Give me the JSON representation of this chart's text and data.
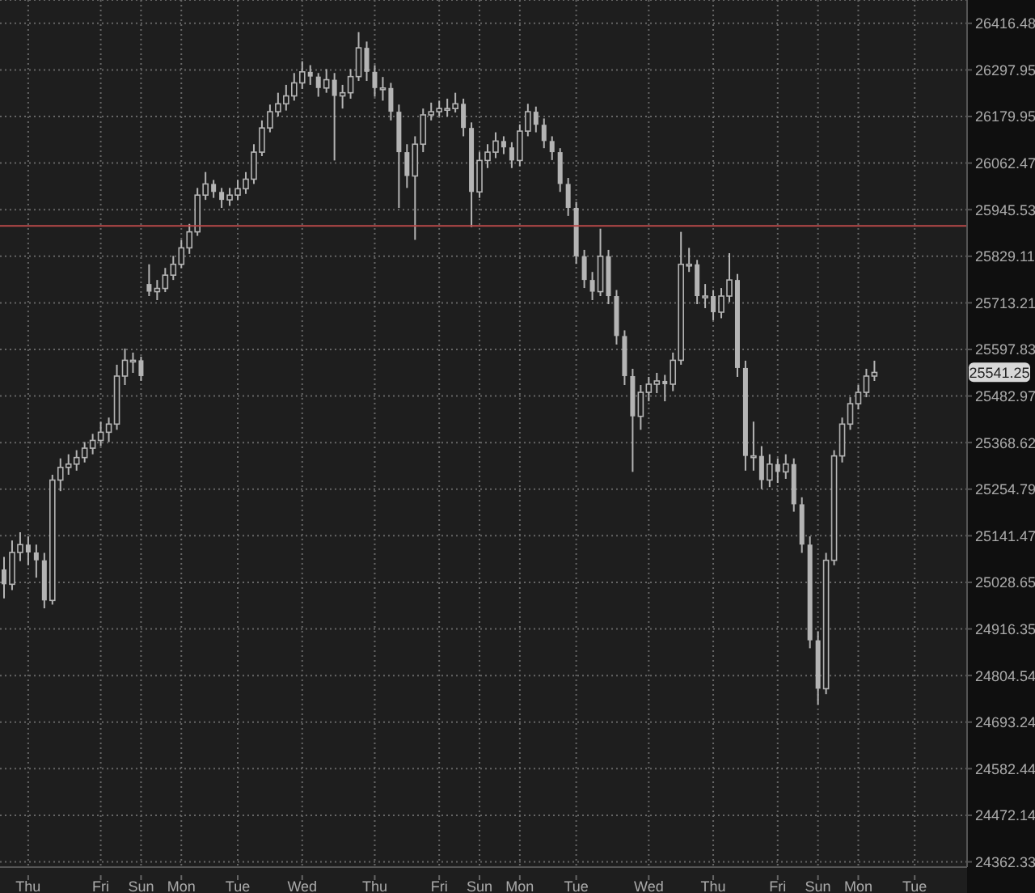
{
  "chart_data": {
    "type": "candlestick",
    "color": "#b4b4b4",
    "log": true,
    "grid": true,
    "ylim": [
      24350,
      26476
    ],
    "yticks": [
      26416.48,
      26297.95,
      26179.95,
      26062.47,
      25945.53,
      25829.11,
      25713.21,
      25597.83,
      25482.97,
      25368.62,
      25254.79,
      25141.47,
      25028.65,
      24916.35,
      24804.54,
      24693.24,
      24582.44,
      24472.14,
      24362.33
    ],
    "categories": [
      null,
      null,
      null,
      "Thu",
      null,
      null,
      null,
      null,
      null,
      null,
      null,
      null,
      "Fri",
      null,
      null,
      null,
      null,
      "Sun",
      null,
      null,
      null,
      null,
      "Mon",
      null,
      null,
      null,
      null,
      null,
      null,
      "Tue",
      null,
      null,
      null,
      null,
      null,
      null,
      null,
      "Wed",
      null,
      null,
      null,
      null,
      null,
      null,
      null,
      null,
      "Thu",
      null,
      null,
      null,
      null,
      null,
      null,
      null,
      "Fri",
      null,
      null,
      null,
      null,
      "Sun",
      null,
      null,
      null,
      null,
      "Mon",
      null,
      null,
      null,
      null,
      null,
      null,
      "Tue",
      null,
      null,
      null,
      null,
      null,
      null,
      null,
      null,
      "Wed",
      null,
      null,
      null,
      null,
      null,
      null,
      null,
      "Thu",
      null,
      null,
      null,
      null,
      null,
      null,
      null,
      "Fri",
      null,
      null,
      null,
      null,
      "Sun",
      null,
      null,
      null,
      null,
      "Mon",
      null,
      null,
      null,
      null,
      null,
      null,
      "Tue",
      null,
      null,
      null,
      null,
      null,
      null
    ],
    "ohlc": [
      [
        25060,
        25090,
        24990,
        25024
      ],
      [
        25024,
        25130,
        25010,
        25101
      ],
      [
        25101,
        25150,
        25080,
        25120
      ],
      [
        25120,
        25140,
        25070,
        25101
      ],
      [
        25101,
        25120,
        25040,
        25082
      ],
      [
        25082,
        25100,
        24966,
        24985
      ],
      [
        24985,
        25290,
        24975,
        25277
      ],
      [
        25277,
        25330,
        25250,
        25308
      ],
      [
        25308,
        25340,
        25290,
        25316
      ],
      [
        25316,
        25350,
        25300,
        25332
      ],
      [
        25332,
        25370,
        25320,
        25355
      ],
      [
        25355,
        25390,
        25340,
        25374
      ],
      [
        25374,
        25420,
        25360,
        25394
      ],
      [
        25394,
        25430,
        25370,
        25414
      ],
      [
        25414,
        25560,
        25400,
        25532
      ],
      [
        25532,
        25600,
        25510,
        25571
      ],
      [
        25571,
        25590,
        25540,
        25571
      ],
      [
        25571,
        25580,
        25520,
        25532
      ],
      [
        25760,
        25809,
        25730,
        25741
      ],
      [
        25741,
        25770,
        25720,
        25749
      ],
      [
        25749,
        25800,
        25740,
        25782
      ],
      [
        25782,
        25830,
        25770,
        25809
      ],
      [
        25809,
        25870,
        25800,
        25850
      ],
      [
        25850,
        25910,
        25835,
        25890
      ],
      [
        25890,
        26000,
        25880,
        25982
      ],
      [
        25982,
        26040,
        25970,
        26010
      ],
      [
        26010,
        26020,
        25975,
        25990
      ],
      [
        25990,
        26000,
        25950,
        25970
      ],
      [
        25970,
        26000,
        25955,
        25982
      ],
      [
        25982,
        26020,
        25970,
        25998
      ],
      [
        25998,
        26040,
        25985,
        26022
      ],
      [
        26022,
        26110,
        26010,
        26090
      ],
      [
        26090,
        26170,
        26080,
        26151
      ],
      [
        26151,
        26210,
        26140,
        26192
      ],
      [
        26192,
        26240,
        26180,
        26212
      ],
      [
        26212,
        26260,
        26195,
        26232
      ],
      [
        26232,
        26290,
        26220,
        26265
      ],
      [
        26265,
        26320,
        26250,
        26293
      ],
      [
        26293,
        26310,
        26260,
        26281
      ],
      [
        26281,
        26290,
        26230,
        26252
      ],
      [
        26252,
        26300,
        26240,
        26273
      ],
      [
        26273,
        26290,
        26069,
        26232
      ],
      [
        26232,
        26260,
        26200,
        26240
      ],
      [
        26240,
        26300,
        26225,
        26281
      ],
      [
        26281,
        26394,
        26270,
        26354
      ],
      [
        26354,
        26370,
        26270,
        26293
      ],
      [
        26293,
        26310,
        26230,
        26252
      ],
      [
        26252,
        26280,
        26220,
        26252
      ],
      [
        26252,
        26265,
        26170,
        26192
      ],
      [
        26192,
        26210,
        25950,
        26090
      ],
      [
        26090,
        26110,
        26000,
        26030
      ],
      [
        26030,
        26130,
        25870,
        26110
      ],
      [
        26110,
        26200,
        26090,
        26184
      ],
      [
        26184,
        26215,
        26170,
        26192
      ],
      [
        26192,
        26220,
        26180,
        26200
      ],
      [
        26200,
        26225,
        26180,
        26200
      ],
      [
        26200,
        26240,
        26190,
        26212
      ],
      [
        26212,
        26225,
        26130,
        26151
      ],
      [
        26151,
        26165,
        25902,
        25990
      ],
      [
        25990,
        26090,
        25975,
        26069
      ],
      [
        26069,
        26110,
        26050,
        26090
      ],
      [
        26090,
        26140,
        26075,
        26118
      ],
      [
        26118,
        26130,
        26085,
        26102
      ],
      [
        26102,
        26115,
        26050,
        26069
      ],
      [
        26069,
        26160,
        26055,
        26143
      ],
      [
        26143,
        26212,
        26130,
        26192
      ],
      [
        26192,
        26205,
        26140,
        26159
      ],
      [
        26159,
        26175,
        26100,
        26118
      ],
      [
        26118,
        26130,
        26070,
        26090
      ],
      [
        26090,
        26100,
        25990,
        26010
      ],
      [
        26010,
        26025,
        25930,
        25950
      ],
      [
        25950,
        25965,
        25810,
        25829
      ],
      [
        25829,
        25845,
        25750,
        25770
      ],
      [
        25770,
        25790,
        25720,
        25741
      ],
      [
        25741,
        25898,
        25730,
        25829
      ],
      [
        25829,
        25845,
        25710,
        25730
      ],
      [
        25730,
        25745,
        25610,
        25631
      ],
      [
        25631,
        25645,
        25510,
        25532
      ],
      [
        25532,
        25550,
        25297,
        25433
      ],
      [
        25433,
        25510,
        25400,
        25492
      ],
      [
        25492,
        25530,
        25470,
        25512
      ],
      [
        25512,
        25540,
        25490,
        25520
      ],
      [
        25520,
        25535,
        25470,
        25512
      ],
      [
        25512,
        25590,
        25495,
        25571
      ],
      [
        25571,
        25890,
        25560,
        25809
      ],
      [
        25809,
        25850,
        25790,
        25809
      ],
      [
        25809,
        25820,
        25710,
        25730
      ],
      [
        25730,
        25760,
        25700,
        25730
      ],
      [
        25730,
        25745,
        25670,
        25690
      ],
      [
        25690,
        25750,
        25675,
        25730
      ],
      [
        25730,
        25837,
        25715,
        25770
      ],
      [
        25770,
        25785,
        25530,
        25552
      ],
      [
        25552,
        25570,
        25300,
        25336
      ],
      [
        25336,
        25420,
        25300,
        25336
      ],
      [
        25336,
        25360,
        25255,
        25277
      ],
      [
        25277,
        25340,
        25260,
        25316
      ],
      [
        25316,
        25330,
        25270,
        25297
      ],
      [
        25297,
        25340,
        25280,
        25316
      ],
      [
        25316,
        25330,
        25200,
        25218
      ],
      [
        25218,
        25235,
        25100,
        25120
      ],
      [
        25120,
        25140,
        24870,
        24889
      ],
      [
        24889,
        24910,
        24735,
        24773
      ],
      [
        24773,
        25100,
        24760,
        25082
      ],
      [
        25082,
        25350,
        25070,
        25336
      ],
      [
        25336,
        25430,
        25320,
        25414
      ],
      [
        25414,
        25480,
        25400,
        25464
      ],
      [
        25464,
        25510,
        25450,
        25492
      ],
      [
        25492,
        25550,
        25480,
        25532
      ],
      [
        25532,
        25570,
        25520,
        25541
      ],
      null,
      null,
      null,
      null,
      null,
      null,
      null,
      null,
      null,
      null,
      null
    ],
    "ref_lines": [
      {
        "axis": "y",
        "value": 25905,
        "color": "#b84a4a"
      }
    ],
    "annotations": [
      {
        "text": "25541.25",
        "y": 25541.25
      }
    ]
  }
}
